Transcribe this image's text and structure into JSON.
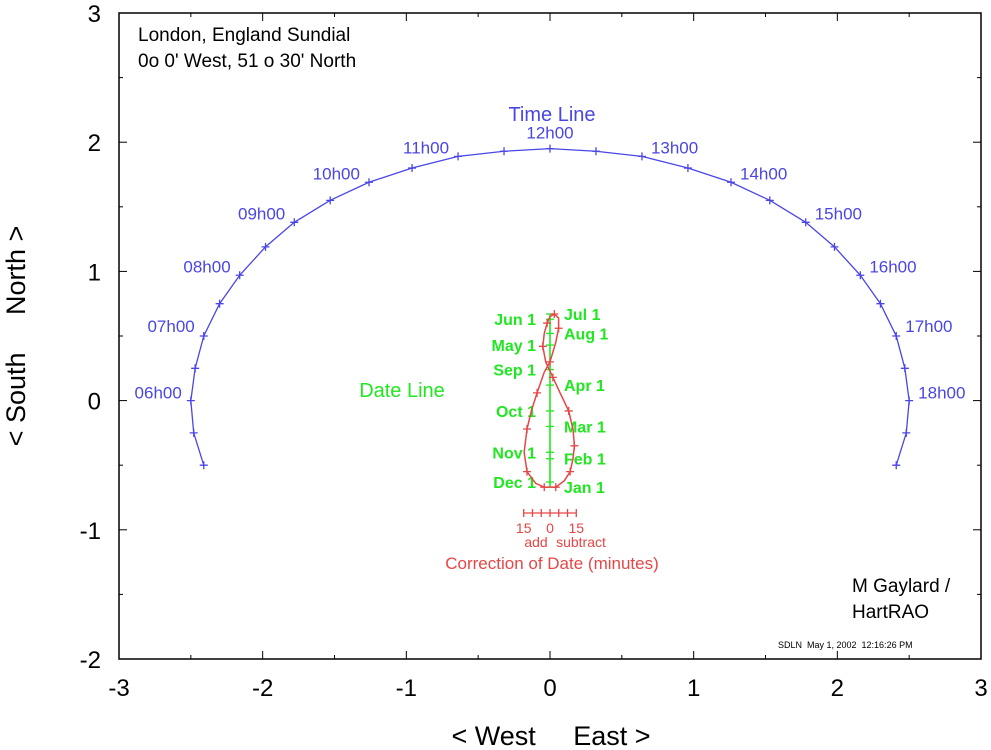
{
  "colors": {
    "time_line": "#4a46e6",
    "date_line": "#22e622",
    "correction": "#e64646",
    "axes": "#000000"
  },
  "title": {
    "line1": "London, England Sundial",
    "line2": "0o 0' West, 51 o 30' North"
  },
  "author": {
    "line1": "M Gaylard /",
    "line2": "HartRAO"
  },
  "stamp": "SDLN  May 1, 2002  12:16:26 PM",
  "x_ticks": [
    "-3",
    "-2",
    "-1",
    "0",
    "1",
    "2",
    "3"
  ],
  "y_ticks": [
    "3",
    "2",
    "1",
    "0",
    "-1",
    "-2"
  ],
  "chart_data": {
    "type": "line",
    "xlabel": "< West     East >",
    "ylabel": "< South     North >",
    "xlim": [
      -3,
      3
    ],
    "ylim": [
      -2,
      3
    ],
    "grid": false,
    "time_line": {
      "title": "Time Line",
      "points": [
        [
          -2.41,
          -0.5
        ],
        [
          -2.48,
          -0.25
        ],
        [
          -2.5,
          0.0
        ],
        [
          -2.47,
          0.25
        ],
        [
          -2.41,
          0.5
        ],
        [
          -2.3,
          0.75
        ],
        [
          -2.16,
          0.97
        ],
        [
          -1.98,
          1.19
        ],
        [
          -1.78,
          1.38
        ],
        [
          -1.53,
          1.55
        ],
        [
          -1.26,
          1.69
        ],
        [
          -0.96,
          1.8
        ],
        [
          -0.64,
          1.89
        ],
        [
          -0.32,
          1.93
        ],
        [
          0.0,
          1.95
        ],
        [
          0.32,
          1.93
        ],
        [
          0.64,
          1.89
        ],
        [
          0.96,
          1.8
        ],
        [
          1.26,
          1.69
        ],
        [
          1.53,
          1.55
        ],
        [
          1.78,
          1.38
        ],
        [
          1.98,
          1.19
        ],
        [
          2.16,
          0.97
        ],
        [
          2.3,
          0.75
        ],
        [
          2.41,
          0.5
        ],
        [
          2.47,
          0.25
        ],
        [
          2.5,
          0.0
        ],
        [
          2.48,
          -0.25
        ],
        [
          2.41,
          -0.5
        ]
      ],
      "hour_labels": [
        {
          "text": "06h00",
          "x": -2.5,
          "y": 0.0
        },
        {
          "text": "07h00",
          "x": -2.41,
          "y": 0.5
        },
        {
          "text": "08h00",
          "x": -2.16,
          "y": 0.97
        },
        {
          "text": "09h00",
          "x": -1.78,
          "y": 1.38
        },
        {
          "text": "10h00",
          "x": -1.26,
          "y": 1.69
        },
        {
          "text": "11h00",
          "x": -0.64,
          "y": 1.89
        },
        {
          "text": "12h00",
          "x": 0.0,
          "y": 1.95
        },
        {
          "text": "13h00",
          "x": 0.64,
          "y": 1.89
        },
        {
          "text": "14h00",
          "x": 1.26,
          "y": 1.69
        },
        {
          "text": "15h00",
          "x": 1.78,
          "y": 1.38
        },
        {
          "text": "16h00",
          "x": 2.16,
          "y": 0.97
        },
        {
          "text": "17h00",
          "x": 2.41,
          "y": 0.5
        },
        {
          "text": "18h00",
          "x": 2.5,
          "y": 0.0
        }
      ]
    },
    "date_line": {
      "title": "Date Line",
      "y_range": [
        -0.67,
        0.67
      ],
      "months": [
        {
          "text": "Jan 1",
          "y": -0.67
        },
        {
          "text": "Feb 1",
          "y": -0.45
        },
        {
          "text": "Mar 1",
          "y": -0.2
        },
        {
          "text": "Apr 1",
          "y": 0.12
        },
        {
          "text": "May 1",
          "y": 0.43
        },
        {
          "text": "Jun 1",
          "y": 0.63
        },
        {
          "text": "Jul 1",
          "y": 0.67
        },
        {
          "text": "Aug 1",
          "y": 0.52
        },
        {
          "text": "Sep 1",
          "y": 0.24
        },
        {
          "text": "Oct 1",
          "y": -0.08
        },
        {
          "text": "Nov 1",
          "y": -0.4
        },
        {
          "text": "Dec 1",
          "y": -0.63
        }
      ]
    },
    "analemma": {
      "points": [
        [
          0.04,
          -0.67
        ],
        [
          0.1,
          -0.62
        ],
        [
          0.14,
          -0.55
        ],
        [
          0.16,
          -0.45
        ],
        [
          0.17,
          -0.35
        ],
        [
          0.16,
          -0.22
        ],
        [
          0.13,
          -0.08
        ],
        [
          0.07,
          0.06
        ],
        [
          0.02,
          0.18
        ],
        [
          -0.03,
          0.3
        ],
        [
          -0.05,
          0.42
        ],
        [
          -0.04,
          0.52
        ],
        [
          -0.02,
          0.6
        ],
        [
          0.0,
          0.65
        ],
        [
          0.03,
          0.67
        ],
        [
          0.06,
          0.64
        ],
        [
          0.06,
          0.56
        ],
        [
          0.04,
          0.45
        ],
        [
          0.0,
          0.3
        ],
        [
          -0.04,
          0.22
        ],
        [
          -0.09,
          0.06
        ],
        [
          -0.13,
          -0.08
        ],
        [
          -0.16,
          -0.22
        ],
        [
          -0.18,
          -0.4
        ],
        [
          -0.16,
          -0.55
        ],
        [
          -0.1,
          -0.64
        ],
        [
          -0.04,
          -0.67
        ],
        [
          0.04,
          -0.67
        ]
      ]
    },
    "correction_scale": {
      "title": "Correction of Date (minutes)",
      "tick_labels": [
        "15",
        "0",
        "15"
      ],
      "left_label": "add",
      "right_label": "subtract",
      "minutes": [
        -15,
        -10,
        -5,
        0,
        5,
        10,
        15
      ],
      "units_per_minute": 0.0122,
      "y": -0.87
    }
  }
}
